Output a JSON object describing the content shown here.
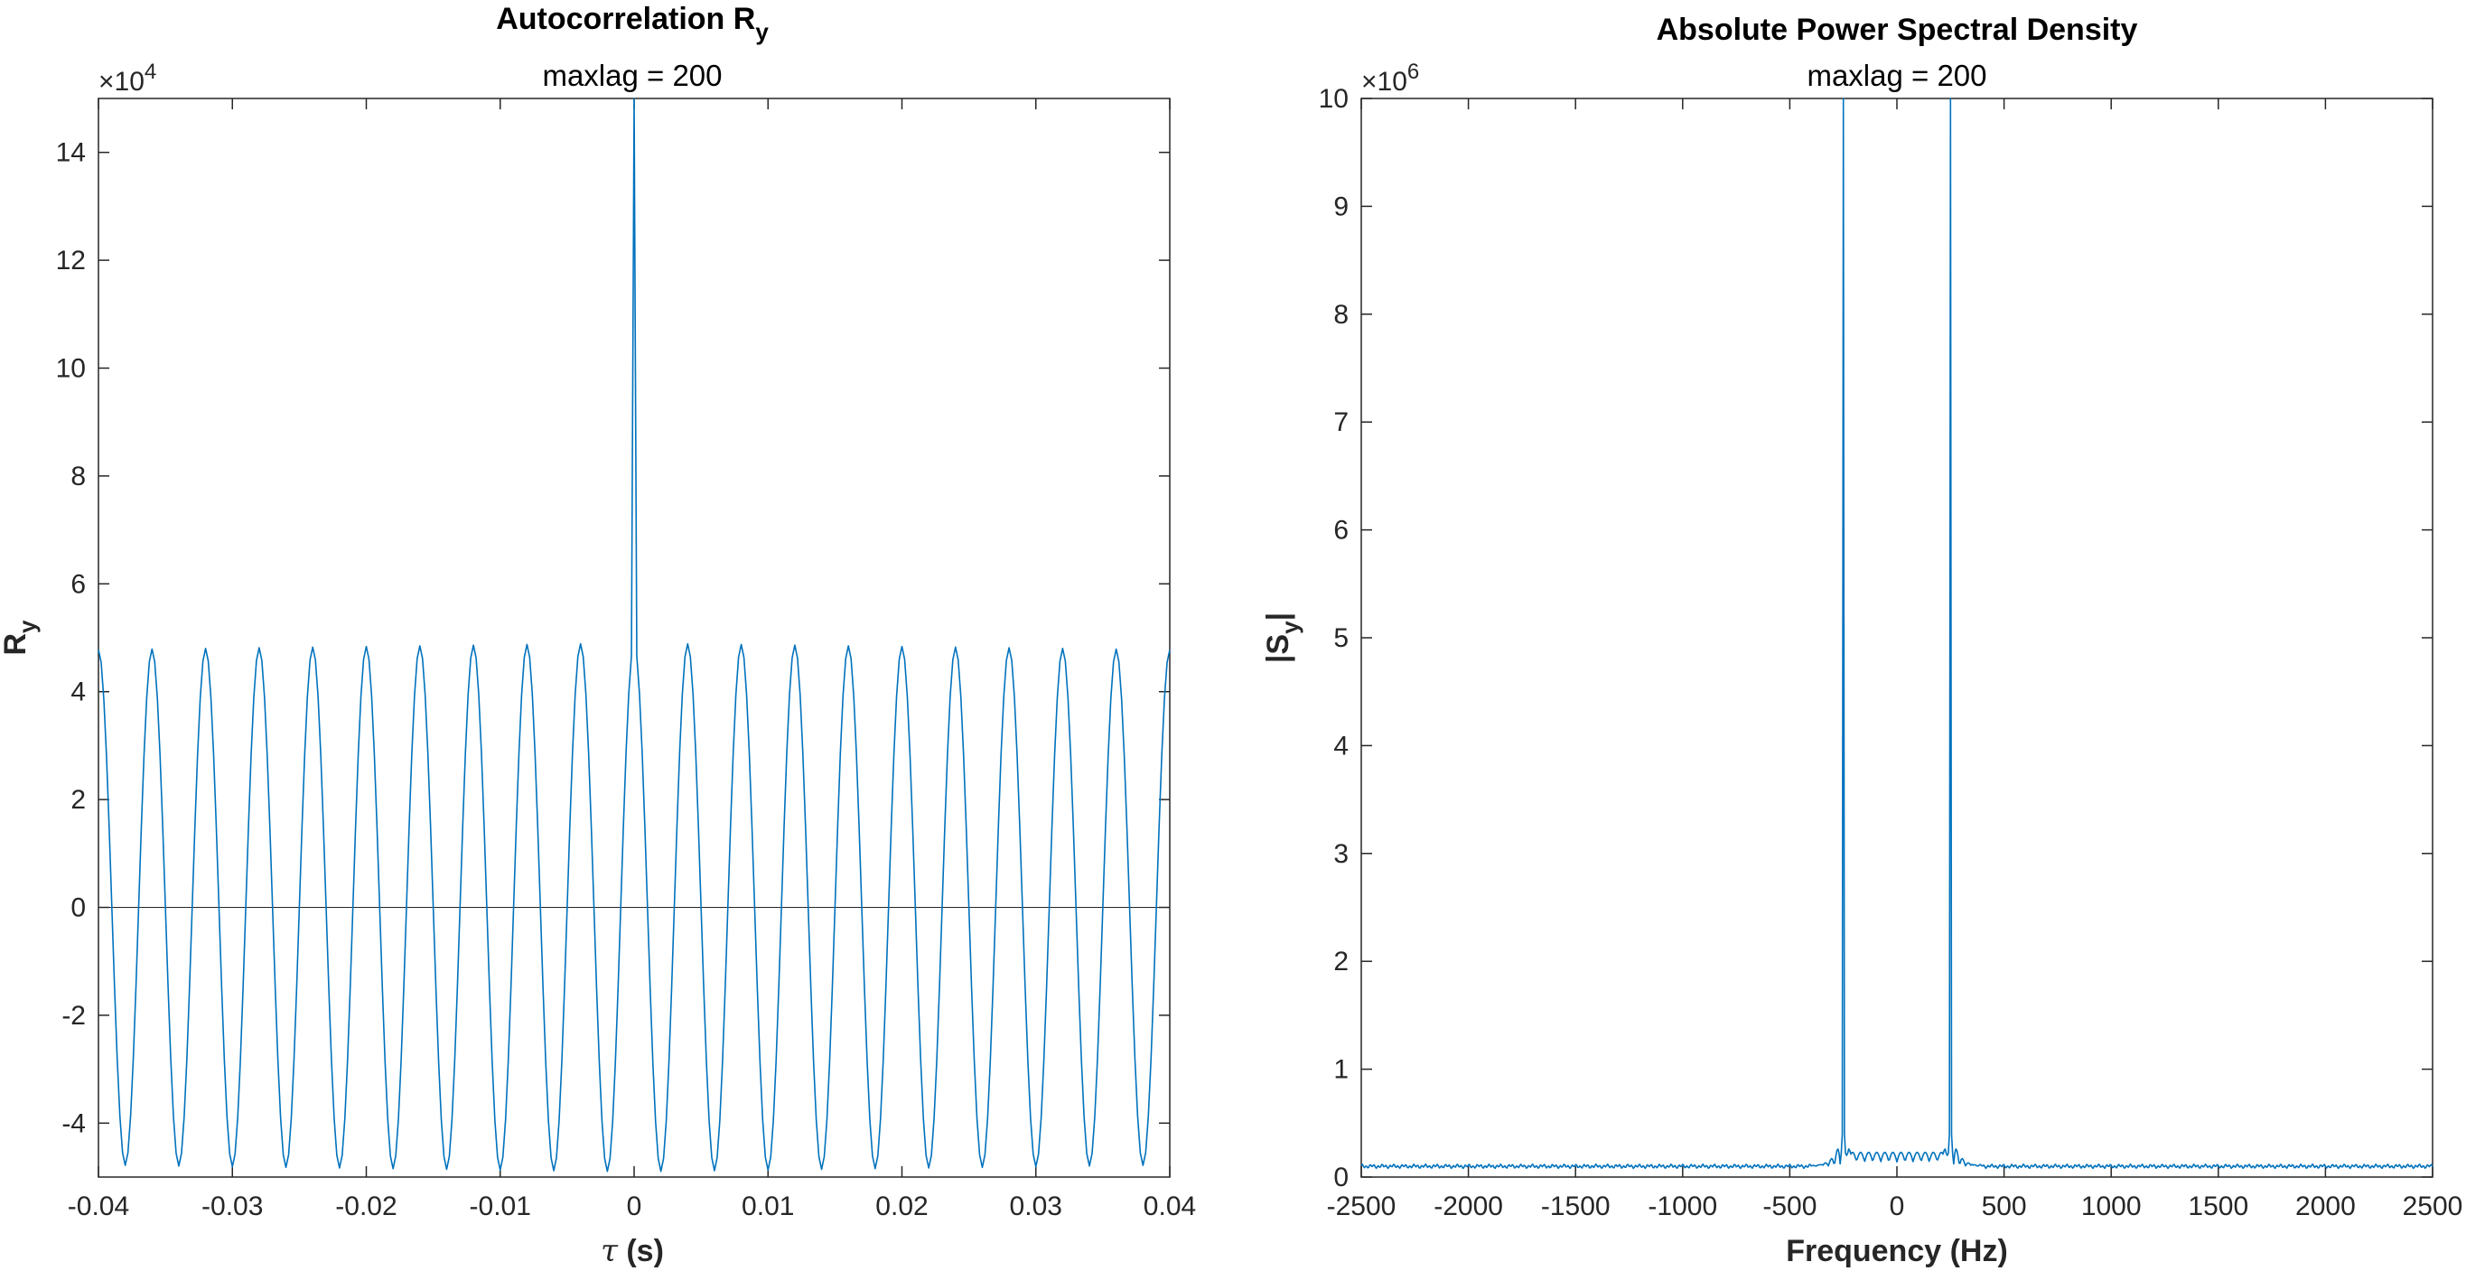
{
  "chart_data": [
    {
      "type": "line",
      "title": "Autocorrelation R",
      "title_sub": "y",
      "subtitle": "maxlag = 200",
      "xlabel_symbol": "τ",
      "xlabel_unit": " (s)",
      "ylabel": "R",
      "ylabel_sub": "y",
      "y_exponent_base": "×10",
      "y_exponent_power": "4",
      "xlim": [
        -0.04,
        0.04
      ],
      "ylim": [
        -50000,
        150000
      ],
      "xticks": [
        -0.04,
        -0.03,
        -0.02,
        -0.01,
        0,
        0.01,
        0.02,
        0.03,
        0.04
      ],
      "xtick_labels": [
        "-0.04",
        "-0.03",
        "-0.02",
        "-0.01",
        "0",
        "0.01",
        "0.02",
        "0.03",
        "0.04"
      ],
      "yticks": [
        -40000,
        -20000,
        0,
        20000,
        40000,
        60000,
        80000,
        100000,
        120000,
        140000
      ],
      "ytick_labels": [
        "-4",
        "-2",
        "0",
        "2",
        "4",
        "6",
        "8",
        "10",
        "12",
        "14"
      ],
      "zero_line": true,
      "grid": false,
      "series_color": "#0072BD",
      "series": [
        {
          "model": "cosine-with-center-spike",
          "amplitude": 49000,
          "period": 0.004,
          "peak_value": 150000,
          "samples": 401
        }
      ]
    },
    {
      "type": "line",
      "title": "Absolute Power Spectral Density",
      "subtitle": "maxlag = 200",
      "xlabel": "Frequency (Hz)",
      "ylabel_open": "|S",
      "ylabel_sub": "y",
      "ylabel_close": "|",
      "y_exponent_base": "×10",
      "y_exponent_power": "6",
      "xlim": [
        -2500,
        2500
      ],
      "ylim": [
        0,
        10000000
      ],
      "xticks": [
        -2500,
        -2000,
        -1500,
        -1000,
        -500,
        0,
        500,
        1000,
        1500,
        2000,
        2500
      ],
      "xtick_labels": [
        "-2500",
        "-2000",
        "-1500",
        "-1000",
        "-500",
        "0",
        "500",
        "1000",
        "1500",
        "2000",
        "2500"
      ],
      "yticks": [
        0,
        1000000,
        2000000,
        3000000,
        4000000,
        5000000,
        6000000,
        7000000,
        8000000,
        9000000,
        10000000
      ],
      "ytick_labels": [
        "0",
        "1",
        "2",
        "3",
        "4",
        "5",
        "6",
        "7",
        "8",
        "9",
        "10"
      ],
      "grid": false,
      "series_color": "#0072BD",
      "series": [
        {
          "model": "twin-peaks-on-noise-floor",
          "peak_frequencies": [
            -250,
            250
          ],
          "peak_value": 10000000,
          "noise_floor": 100000,
          "sidelobe_level": 350000,
          "samples": 1001
        }
      ]
    }
  ]
}
